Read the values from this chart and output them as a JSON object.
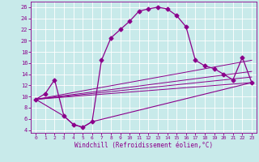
{
  "xlabel": "Windchill (Refroidissement éolien,°C)",
  "bg_color": "#c8eaea",
  "line_color": "#8b008b",
  "marker": "D",
  "marker_size": 2.5,
  "xlim": [
    -0.5,
    23.5
  ],
  "ylim": [
    3.5,
    27
  ],
  "xticks": [
    0,
    1,
    2,
    3,
    4,
    5,
    6,
    7,
    8,
    9,
    10,
    11,
    12,
    13,
    14,
    15,
    16,
    17,
    18,
    19,
    20,
    21,
    22,
    23
  ],
  "yticks": [
    4,
    6,
    8,
    10,
    12,
    14,
    16,
    18,
    20,
    22,
    24,
    26
  ],
  "grid_color": "#a8d8d8",
  "main_x": [
    0,
    1,
    2,
    3,
    4,
    5,
    6,
    7,
    8,
    9,
    10,
    11,
    12,
    13,
    14,
    15,
    16,
    17,
    18,
    19,
    20,
    21,
    22,
    23
  ],
  "main_y": [
    9.5,
    10.5,
    13.0,
    6.5,
    5.0,
    4.5,
    5.5,
    16.5,
    20.5,
    22.0,
    23.5,
    25.3,
    25.7,
    26.0,
    25.7,
    24.5,
    22.5,
    16.5,
    15.5,
    15.0,
    14.0,
    13.0,
    17.0,
    12.5
  ],
  "low_curve_x": [
    0,
    3,
    4,
    5,
    6,
    23
  ],
  "low_curve_y": [
    9.5,
    6.5,
    5.0,
    4.5,
    5.5,
    12.5
  ],
  "line1_x": [
    0,
    23
  ],
  "line1_y": [
    9.5,
    16.5
  ],
  "line2_x": [
    0,
    23
  ],
  "line2_y": [
    9.5,
    14.5
  ],
  "line3_x": [
    0,
    23
  ],
  "line3_y": [
    9.5,
    13.5
  ],
  "line4_x": [
    0,
    23
  ],
  "line4_y": [
    9.5,
    12.5
  ]
}
